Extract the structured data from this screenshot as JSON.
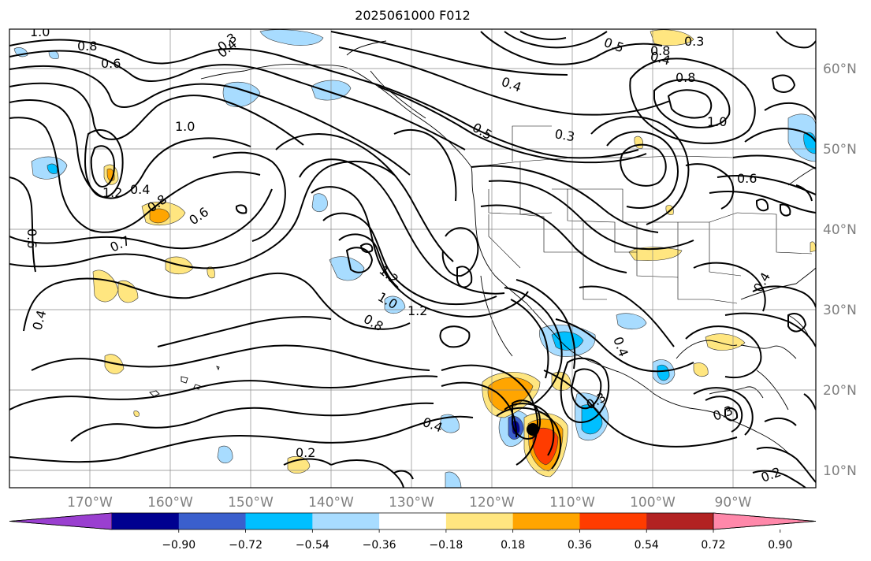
{
  "title": "2025061000 F012",
  "lon_labels": [
    "170°W",
    "160°W",
    "150°W",
    "140°W",
    "130°W",
    "120°W",
    "110°W",
    "100°W",
    "90°W"
  ],
  "lat_labels": [
    "60°N",
    "50°N",
    "40°N",
    "30°N",
    "20°N",
    "10°N"
  ],
  "colorbar": {
    "ticks": [
      "−0.90",
      "−0.72",
      "−0.54",
      "−0.36",
      "−0.18",
      "0.18",
      "0.36",
      "0.54",
      "0.72",
      "0.90"
    ],
    "colors": [
      "#9a3fd0",
      "#000090",
      "#3a5fcd",
      "#00bfff",
      "#a8dcff",
      "#ffffff",
      "#ffe680",
      "#ffa500",
      "#ff3c00",
      "#b22222",
      "#ff88aa"
    ]
  },
  "contour_labels": [
    "1.0",
    "0.8",
    "0.6",
    "0.3",
    "0.4",
    "1.2",
    "1.0",
    "0.4",
    "0.8",
    "0.6",
    "0.6",
    "0.7",
    "0.4",
    "0.8",
    "0.5",
    "0.3",
    "0.4",
    "0.3",
    "0.8",
    "1.0",
    "1.2",
    "1.0",
    "0.8",
    "1.2",
    "0.5",
    "0.4",
    "0.2",
    "0.4",
    "0.3",
    "0.4",
    "0.3",
    "0.2",
    "0.4",
    "0.6"
  ]
}
